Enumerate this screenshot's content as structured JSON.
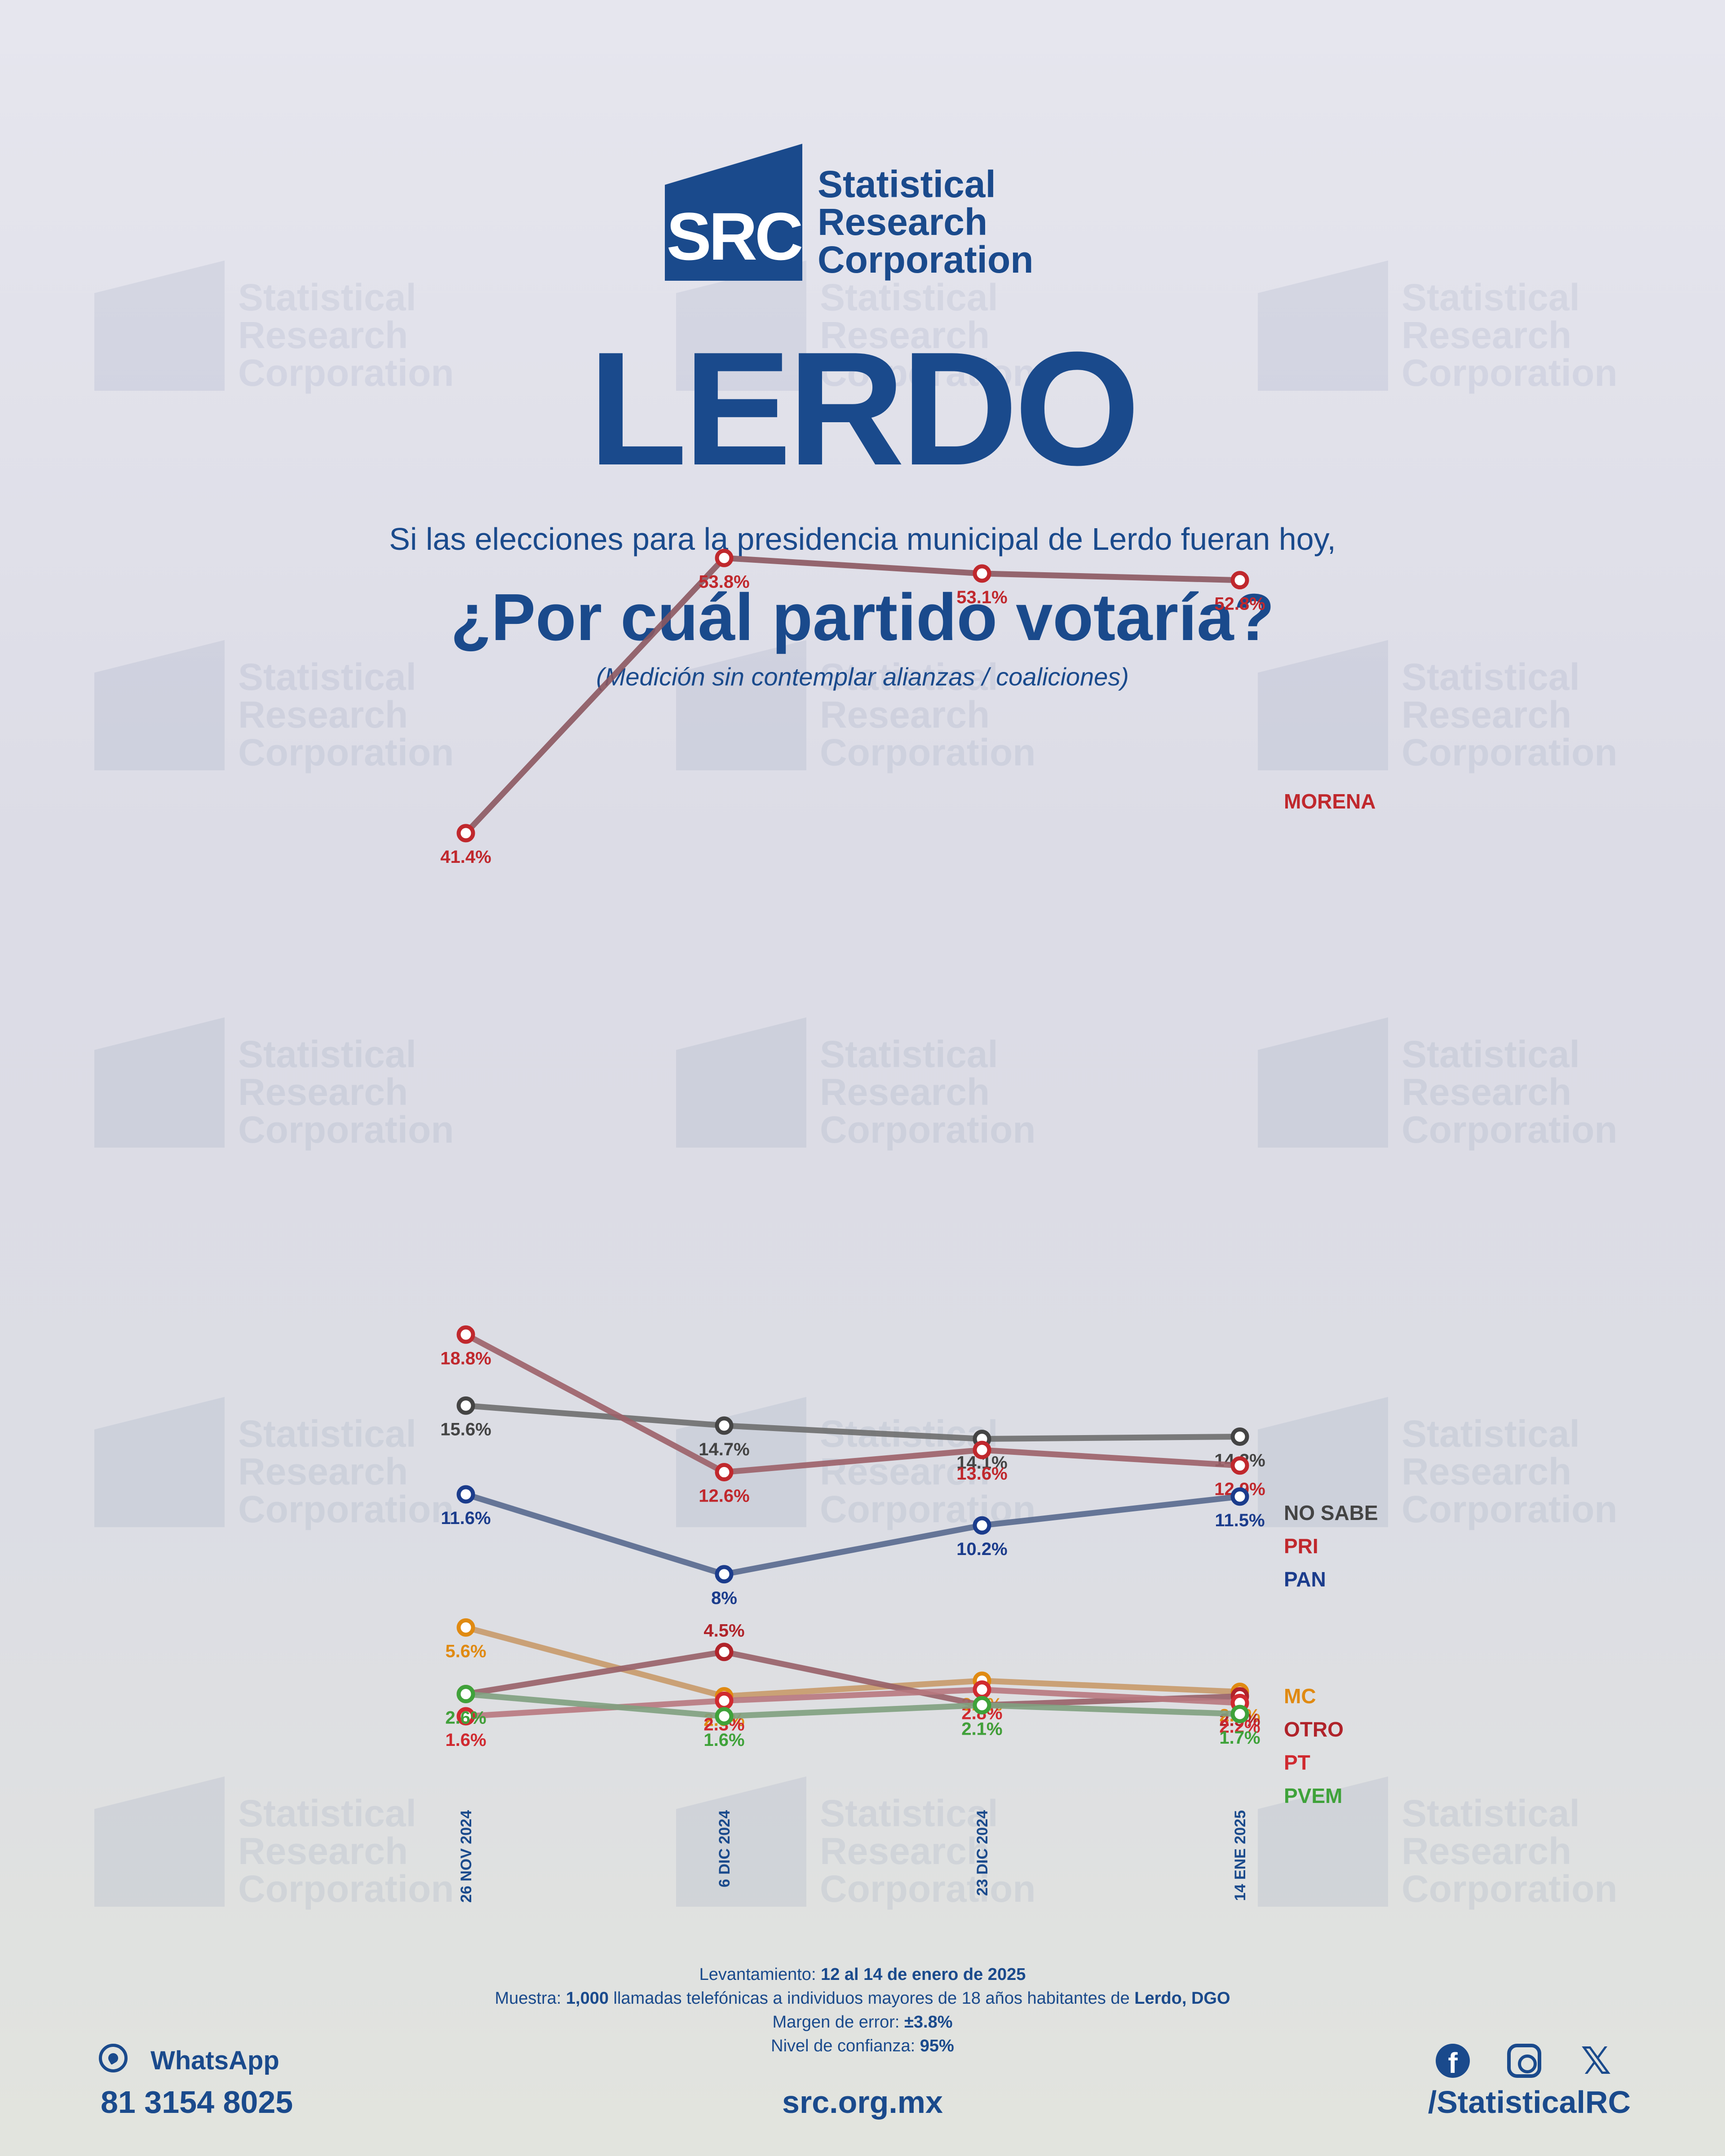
{
  "brand": {
    "logo_text": "SRC",
    "name_lines": [
      "Statistical",
      "Research",
      "Corporation"
    ],
    "color": "#1a4a8c"
  },
  "header": {
    "title": "LERDO",
    "subtitle": "Si las elecciones para la presidencia municipal de Lerdo fueran hoy,",
    "question": "¿Por cuál partido votaría?",
    "note": "(Medición sin contemplar alianzas / coaliciones)"
  },
  "chart_data": {
    "type": "line",
    "categories": [
      "26 NOV 2024",
      "6 DIC 2024",
      "23 DIC 2024",
      "14 ENE 2025"
    ],
    "series": [
      {
        "name": "MORENA",
        "values": [
          41.4,
          53.8,
          53.1,
          52.8
        ],
        "labels": [
          "41.4%",
          "53.8%",
          "53.1%",
          "52.8%"
        ],
        "color": "#c0282d",
        "line_color": "#8c5860"
      },
      {
        "name": "NO SABE",
        "values": [
          15.6,
          14.7,
          14.1,
          14.2
        ],
        "labels": [
          "15.6%",
          "14.7%",
          "14.1%",
          "14.2%"
        ],
        "color": "#444444",
        "line_color": "#6e6e6e"
      },
      {
        "name": "PRI",
        "values": [
          18.8,
          12.6,
          13.6,
          12.9
        ],
        "labels": [
          "18.8%",
          "12.6%",
          "13.6%",
          "12.9%"
        ],
        "color": "#c0282d",
        "line_color": "#9c6068"
      },
      {
        "name": "PAN",
        "values": [
          11.6,
          8,
          10.2,
          11.5
        ],
        "labels": [
          "11.6%",
          "8%",
          "10.2%",
          "11.5%"
        ],
        "color": "#1b3c8c",
        "line_color": "#58698e"
      },
      {
        "name": "MC",
        "values": [
          5.6,
          2.5,
          3.2,
          2.7
        ],
        "labels": [
          "5.6%",
          "2.5%",
          "3.2%",
          "2.7%"
        ],
        "color": "#e08a12",
        "line_color": "#c89a6a"
      },
      {
        "name": "OTRO",
        "values": [
          2.6,
          4.5,
          2.1,
          2.5
        ],
        "labels": [
          "2.6%",
          "4.5%",
          "2.1%",
          "2.5%"
        ],
        "color": "#b0232a",
        "line_color": "#986068"
      },
      {
        "name": "PT",
        "values": [
          1.6,
          2.3,
          2.8,
          2.2
        ],
        "labels": [
          "1.6%",
          "2.3%",
          "2.8%",
          "2.2%"
        ],
        "color": "#d02a30",
        "line_color": "#b87880"
      },
      {
        "name": "PVEM",
        "values": [
          2.6,
          1.6,
          2.1,
          1.7
        ],
        "labels": [
          "2.6%",
          "1.6%",
          "2.1%",
          "1.7%"
        ],
        "color": "#3fa23a",
        "line_color": "#80a080"
      }
    ],
    "ylim": [
      0,
      56
    ],
    "grid": false,
    "legend": "right"
  },
  "footer": {
    "fieldwork_label": "Levantamiento:",
    "fieldwork_value": "12 al 14 de enero de 2025",
    "sample_label": "Muestra:",
    "sample_count": "1,000",
    "sample_text": "llamadas telefónicas a individuos mayores de 18 años habitantes de",
    "sample_place": "Lerdo, DGO",
    "margin_label": "Margen de error:",
    "margin_value": "±3.8%",
    "confidence_label": "Nivel de confianza:",
    "confidence_value": "95%",
    "whatsapp_label": "WhatsApp",
    "whatsapp_number": "81 3154 8025",
    "website": "src.org.mx",
    "social_handle": "/StatisticalRC",
    "icons": [
      "whatsapp-icon",
      "facebook-icon",
      "instagram-icon",
      "x-icon"
    ]
  }
}
